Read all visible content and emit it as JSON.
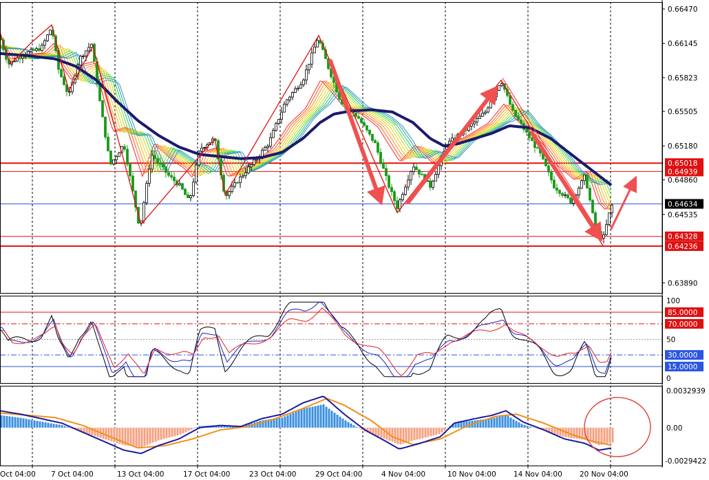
{
  "chart_data": [
    {
      "type": "candlestick",
      "panel": "price",
      "ylim": [
        0.63795,
        0.66535
      ],
      "ticks": [
        "0.66470",
        "0.66145",
        "0.65823",
        "0.65505",
        "0.65180",
        "0.64860",
        "0.64535",
        "0.63890"
      ],
      "x_labels": [
        "Oct 04:00",
        "7 Oct 04:00",
        "13 Oct 04:00",
        "17 Oct 04:00",
        "23 Oct 04:00",
        "29 Oct 04:00",
        "4 Nov 04:00",
        "10 Nov 04:00",
        "14 Nov 04:00",
        "20 Nov 04:00"
      ],
      "levels": [
        {
          "value": 0.65018,
          "label": "0.65018",
          "color": "#e01010"
        },
        {
          "value": 0.64939,
          "label": "0.64939",
          "color": "#e01010"
        },
        {
          "value": 0.64634,
          "label": "0.64634",
          "color": "#2a56e0"
        },
        {
          "value": 0.64328,
          "label": "0.64328",
          "color": "#e01010"
        },
        {
          "value": 0.64236,
          "label": "0.64236",
          "color": "#e01010"
        }
      ],
      "close_path": [
        [
          0,
          0.662
        ],
        [
          12,
          0.6595
        ],
        [
          35,
          0.6605
        ],
        [
          60,
          0.661
        ],
        [
          75,
          0.663
        ],
        [
          85,
          0.659
        ],
        [
          100,
          0.6565
        ],
        [
          115,
          0.66
        ],
        [
          133,
          0.6614
        ],
        [
          145,
          0.656
        ],
        [
          160,
          0.65
        ],
        [
          180,
          0.652
        ],
        [
          203,
          0.644
        ],
        [
          220,
          0.651
        ],
        [
          245,
          0.649
        ],
        [
          262,
          0.648
        ],
        [
          275,
          0.6465
        ],
        [
          290,
          0.6515
        ],
        [
          312,
          0.6525
        ],
        [
          327,
          0.647
        ],
        [
          345,
          0.6485
        ],
        [
          365,
          0.65
        ],
        [
          390,
          0.652
        ],
        [
          415,
          0.656
        ],
        [
          440,
          0.658
        ],
        [
          462,
          0.662
        ],
        [
          478,
          0.659
        ],
        [
          495,
          0.656
        ],
        [
          520,
          0.6545
        ],
        [
          545,
          0.652
        ],
        [
          565,
          0.648
        ],
        [
          577,
          0.646
        ],
        [
          600,
          0.65
        ],
        [
          625,
          0.648
        ],
        [
          650,
          0.652
        ],
        [
          680,
          0.6535
        ],
        [
          705,
          0.655
        ],
        [
          728,
          0.658
        ],
        [
          745,
          0.655
        ],
        [
          765,
          0.653
        ],
        [
          785,
          0.651
        ],
        [
          805,
          0.648
        ],
        [
          830,
          0.6465
        ],
        [
          850,
          0.649
        ],
        [
          865,
          0.644
        ],
        [
          876,
          0.643
        ],
        [
          888,
          0.6462
        ]
      ],
      "ma_path": [
        [
          0,
          0.6605
        ],
        [
          40,
          0.6603
        ],
        [
          80,
          0.66
        ],
        [
          110,
          0.6593
        ],
        [
          140,
          0.658
        ],
        [
          170,
          0.656
        ],
        [
          200,
          0.6542
        ],
        [
          230,
          0.6528
        ],
        [
          260,
          0.6517
        ],
        [
          290,
          0.651
        ],
        [
          320,
          0.6508
        ],
        [
          350,
          0.6506
        ],
        [
          380,
          0.6507
        ],
        [
          410,
          0.6512
        ],
        [
          440,
          0.6525
        ],
        [
          465,
          0.654
        ],
        [
          485,
          0.6548
        ],
        [
          510,
          0.6551
        ],
        [
          540,
          0.6552
        ],
        [
          570,
          0.655
        ],
        [
          600,
          0.654
        ],
        [
          625,
          0.6525
        ],
        [
          645,
          0.6518
        ],
        [
          665,
          0.652
        ],
        [
          690,
          0.6525
        ],
        [
          715,
          0.653
        ],
        [
          740,
          0.6537
        ],
        [
          770,
          0.6535
        ],
        [
          800,
          0.6525
        ],
        [
          830,
          0.651
        ],
        [
          860,
          0.6495
        ],
        [
          890,
          0.648
        ]
      ],
      "zigzag": [
        [
          0,
          0.6625
        ],
        [
          15,
          0.6595
        ],
        [
          45,
          0.6615
        ],
        [
          75,
          0.6632
        ],
        [
          100,
          0.657
        ],
        [
          135,
          0.6612
        ],
        [
          205,
          0.6444
        ],
        [
          312,
          0.6525
        ],
        [
          327,
          0.6472
        ],
        [
          463,
          0.6622
        ],
        [
          577,
          0.6455
        ],
        [
          728,
          0.658
        ],
        [
          876,
          0.6424
        ]
      ],
      "arrows": [
        {
          "from": [
            480,
            0.6598
          ],
          "to": [
            555,
            0.6462
          ],
          "width": 6
        },
        {
          "from": [
            593,
            0.6465
          ],
          "to": [
            724,
            0.6575
          ],
          "width": 6
        },
        {
          "from": [
            773,
            0.653
          ],
          "to": [
            875,
            0.6428
          ],
          "width": 6
        },
        {
          "from": [
            888,
            0.644
          ],
          "to": [
            925,
            0.649
          ],
          "width": 3
        }
      ]
    },
    {
      "type": "oscillator",
      "panel": "stochastic",
      "ylim": [
        0,
        100
      ],
      "ticks": [
        "100",
        "50",
        "0"
      ],
      "levels": [
        {
          "value": 85,
          "label": "85.0000",
          "color": "#e01010"
        },
        {
          "value": 70,
          "label": "70.0000",
          "color": "#e01010"
        },
        {
          "value": 30,
          "label": "30.0000",
          "color": "#2a56e0"
        },
        {
          "value": 15,
          "label": "15.0000",
          "color": "#2a56e0"
        }
      ]
    },
    {
      "type": "macd",
      "panel": "macd",
      "ylim": [
        -0.0029422,
        0.0032939
      ],
      "ticks": [
        "0.0032939",
        "0.00",
        "-0.0029422"
      ],
      "macd_path": [
        [
          0,
          0.0015
        ],
        [
          30,
          0.0012
        ],
        [
          60,
          0.0008
        ],
        [
          90,
          0.0004
        ],
        [
          120,
          -0.0004
        ],
        [
          150,
          -0.0012
        ],
        [
          180,
          -0.002
        ],
        [
          205,
          -0.0023
        ],
        [
          230,
          -0.0016
        ],
        [
          260,
          -0.001
        ],
        [
          290,
          0.0
        ],
        [
          320,
          0.0002
        ],
        [
          350,
          0.0001
        ],
        [
          380,
          0.0008
        ],
        [
          410,
          0.0012
        ],
        [
          440,
          0.0022
        ],
        [
          470,
          0.0028
        ],
        [
          500,
          0.0012
        ],
        [
          530,
          -0.0002
        ],
        [
          560,
          -0.0012
        ],
        [
          580,
          -0.0019
        ],
        [
          610,
          -0.0014
        ],
        [
          640,
          -0.0008
        ],
        [
          660,
          0.0004
        ],
        [
          690,
          0.0008
        ],
        [
          715,
          0.0011
        ],
        [
          735,
          0.0015
        ],
        [
          760,
          0.0005
        ],
        [
          790,
          -0.0002
        ],
        [
          820,
          -0.001
        ],
        [
          850,
          -0.0014
        ],
        [
          870,
          -0.002
        ],
        [
          890,
          -0.0018
        ]
      ],
      "signal_path": [
        [
          0,
          0.0013
        ],
        [
          40,
          0.0011
        ],
        [
          80,
          0.0009
        ],
        [
          120,
          0.0002
        ],
        [
          160,
          -0.0008
        ],
        [
          200,
          -0.0018
        ],
        [
          240,
          -0.0016
        ],
        [
          280,
          -0.001
        ],
        [
          320,
          -0.0002
        ],
        [
          360,
          0.0001
        ],
        [
          400,
          0.0008
        ],
        [
          440,
          0.0017
        ],
        [
          475,
          0.0026
        ],
        [
          500,
          0.002
        ],
        [
          540,
          0.0006
        ],
        [
          570,
          -0.0008
        ],
        [
          600,
          -0.0015
        ],
        [
          640,
          -0.001
        ],
        [
          680,
          0.0002
        ],
        [
          720,
          0.001
        ],
        [
          750,
          0.0012
        ],
        [
          790,
          0.0004
        ],
        [
          830,
          -0.0006
        ],
        [
          860,
          -0.0012
        ],
        [
          890,
          -0.0016
        ]
      ]
    }
  ]
}
